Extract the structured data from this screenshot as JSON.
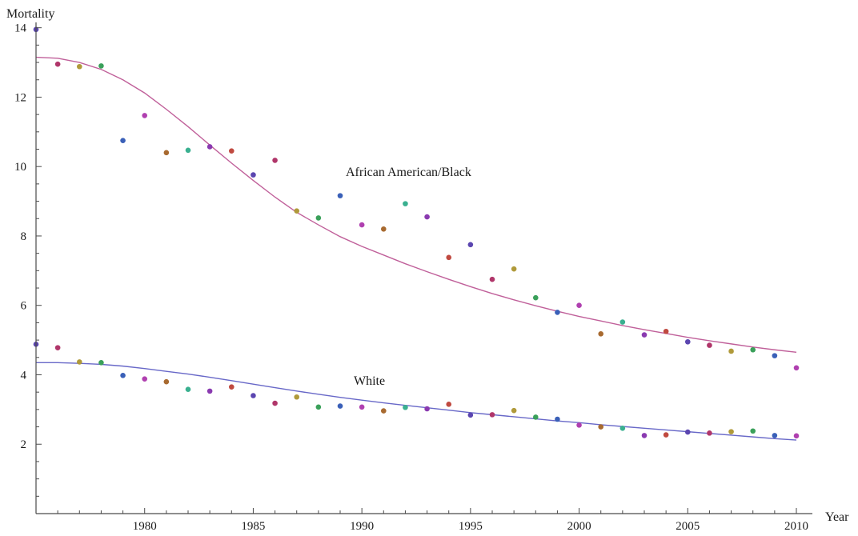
{
  "chart_data": {
    "type": "scatter",
    "xlabel": "Year",
    "ylabel": "Mortality",
    "xlim": [
      1975,
      2010
    ],
    "ylim": [
      0,
      14.2
    ],
    "x_ticks": [
      1980,
      1985,
      1990,
      1995,
      2000,
      2005,
      2010
    ],
    "y_ticks": [
      2,
      4,
      6,
      8,
      10,
      12,
      14
    ],
    "annotations": [
      {
        "text": "African American/Black",
        "x": 1992,
        "y": 10.1
      },
      {
        "text": "White",
        "x": 1990.5,
        "y": 4.3
      }
    ],
    "point_colors": [
      "#5b46b0",
      "#b0366a",
      "#b09a3a",
      "#3aa05a",
      "#3a60b8",
      "#b040b0",
      "#a86a30",
      "#3ab090",
      "#8a3ab0",
      "#c04a40"
    ],
    "series": [
      {
        "name": "African American/Black",
        "x": [
          1975,
          1976,
          1977,
          1978,
          1979,
          1980,
          1981,
          1982,
          1983,
          1984,
          1985,
          1986,
          1987,
          1988,
          1989,
          1990,
          1991,
          1992,
          1993,
          1994,
          1995,
          1996,
          1997,
          1998,
          1999,
          2000,
          2001,
          2002,
          2003,
          2004,
          2005,
          2006,
          2007,
          2008,
          2009,
          2010
        ],
        "y": [
          13.95,
          12.95,
          12.88,
          12.9,
          10.75,
          11.47,
          10.4,
          10.47,
          10.57,
          10.45,
          9.76,
          10.18,
          8.72,
          8.52,
          9.16,
          8.32,
          8.2,
          8.93,
          8.55,
          7.38,
          7.75,
          6.75,
          7.05,
          6.22,
          5.8,
          6.0,
          5.18,
          5.52,
          5.15,
          5.25,
          4.95,
          4.85,
          4.68,
          4.72,
          4.55,
          4.2
        ]
      },
      {
        "name": "White",
        "x": [
          1975,
          1976,
          1977,
          1978,
          1979,
          1980,
          1981,
          1982,
          1983,
          1984,
          1985,
          1986,
          1987,
          1988,
          1989,
          1990,
          1991,
          1992,
          1993,
          1994,
          1995,
          1996,
          1997,
          1998,
          1999,
          2000,
          2001,
          2002,
          2003,
          2004,
          2005,
          2006,
          2007,
          2008,
          2009,
          2010
        ],
        "y": [
          4.88,
          4.78,
          4.37,
          4.35,
          3.98,
          3.88,
          3.8,
          3.58,
          3.53,
          3.65,
          3.4,
          3.18,
          3.36,
          3.07,
          3.1,
          3.07,
          2.96,
          3.06,
          3.02,
          3.15,
          2.84,
          2.85,
          2.97,
          2.78,
          2.72,
          2.55,
          2.5,
          2.46,
          2.25,
          2.27,
          2.35,
          2.32,
          2.36,
          2.38,
          2.25,
          2.24
        ]
      }
    ],
    "fits": [
      {
        "name": "African American/Black",
        "color": "#c0609a",
        "x": [
          1975,
          1976,
          1977,
          1978,
          1979,
          1980,
          1981,
          1982,
          1983,
          1984,
          1985,
          1986,
          1987,
          1988,
          1989,
          1990,
          1991,
          1992,
          1993,
          1994,
          1995,
          1996,
          1997,
          1998,
          1999,
          2000,
          2001,
          2002,
          2003,
          2004,
          2005,
          2006,
          2007,
          2008,
          2009,
          2010
        ],
        "y": [
          13.15,
          13.12,
          13.0,
          12.8,
          12.5,
          12.12,
          11.65,
          11.15,
          10.62,
          10.1,
          9.6,
          9.12,
          8.68,
          8.32,
          7.98,
          7.7,
          7.45,
          7.2,
          6.97,
          6.75,
          6.54,
          6.34,
          6.16,
          5.99,
          5.83,
          5.68,
          5.55,
          5.42,
          5.3,
          5.19,
          5.08,
          4.98,
          4.89,
          4.8,
          4.72,
          4.65
        ]
      },
      {
        "name": "White",
        "color": "#6868c8",
        "x": [
          1975,
          1976,
          1977,
          1978,
          1979,
          1980,
          1981,
          1982,
          1983,
          1984,
          1985,
          1986,
          1987,
          1988,
          1989,
          1990,
          1991,
          1992,
          1993,
          1994,
          1995,
          1996,
          1997,
          1998,
          1999,
          2000,
          2001,
          2002,
          2003,
          2004,
          2005,
          2006,
          2007,
          2008,
          2009,
          2010
        ],
        "y": [
          4.35,
          4.35,
          4.33,
          4.3,
          4.25,
          4.18,
          4.1,
          4.02,
          3.93,
          3.83,
          3.73,
          3.63,
          3.53,
          3.44,
          3.35,
          3.27,
          3.19,
          3.12,
          3.05,
          2.98,
          2.91,
          2.85,
          2.79,
          2.73,
          2.67,
          2.62,
          2.56,
          2.51,
          2.46,
          2.41,
          2.36,
          2.31,
          2.26,
          2.21,
          2.16,
          2.12
        ]
      }
    ]
  }
}
